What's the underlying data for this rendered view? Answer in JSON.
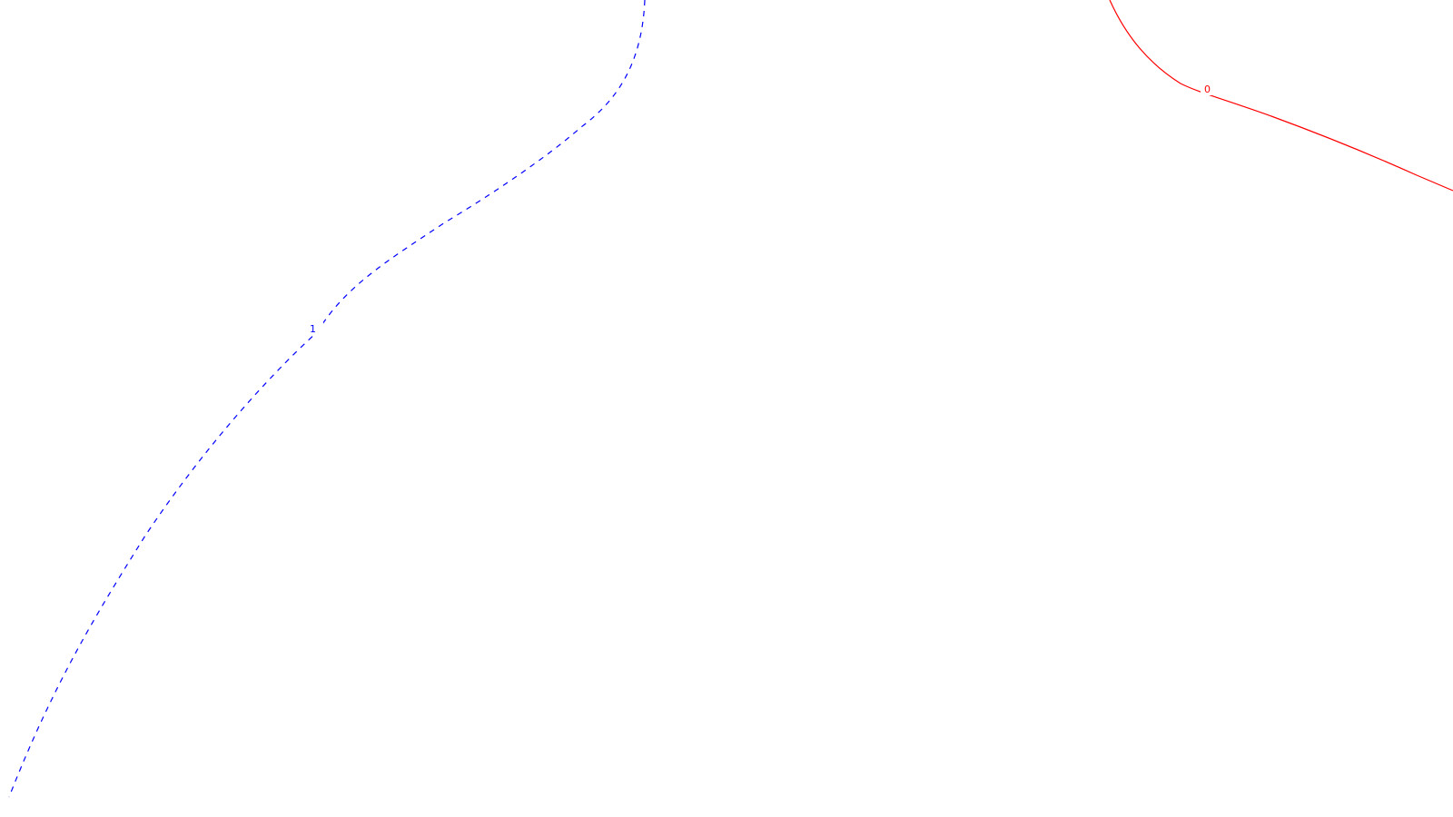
{
  "chart_data": {
    "type": "line",
    "title": "",
    "xlabel": "",
    "ylabel": "",
    "grid": false,
    "series": [
      {
        "label": "1",
        "color": "#0000ff",
        "line_style": "dashed"
      },
      {
        "label": "0",
        "color": "#ff0000",
        "line_style": "solid"
      }
    ]
  }
}
